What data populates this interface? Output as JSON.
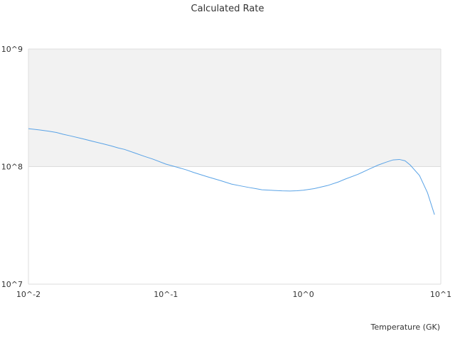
{
  "chart_data": {
    "type": "line",
    "title": "Calculated Rate",
    "xlabel": "Temperature (GK)",
    "ylabel": "",
    "x_scale": "log",
    "y_scale": "log",
    "xlim": [
      0.01,
      10
    ],
    "ylim": [
      10000000,
      1000000000
    ],
    "x_ticks": [
      {
        "value": 0.01,
        "label": "10^-2"
      },
      {
        "value": 0.1,
        "label": "10^-1"
      },
      {
        "value": 1,
        "label": "10^0"
      },
      {
        "value": 10,
        "label": "10^1"
      }
    ],
    "y_ticks": [
      {
        "value": 10000000,
        "label": "10^7"
      },
      {
        "value": 100000000,
        "label": "10^8"
      },
      {
        "value": 1000000000,
        "label": "10^9"
      }
    ],
    "band": {
      "from": 100000000,
      "to": 1000000000,
      "color": "#f2f2f2"
    },
    "gridlines": true,
    "legend": "none",
    "colors": {
      "line": "#5aa3e6",
      "axis": "#dddddd",
      "grid": "#dddddd"
    },
    "series": [
      {
        "x": [
          0.01,
          0.012,
          0.014,
          0.016,
          0.018,
          0.02,
          0.025,
          0.03,
          0.035,
          0.04,
          0.045,
          0.05,
          0.06,
          0.07,
          0.08,
          0.1,
          0.12,
          0.14,
          0.16,
          0.2,
          0.25,
          0.3,
          0.35,
          0.4,
          0.45,
          0.5,
          0.6,
          0.7,
          0.8,
          0.9,
          1.0,
          1.2,
          1.5,
          1.8,
          2.0,
          2.5,
          3.0,
          3.5,
          4.0,
          4.5,
          5.0,
          5.5,
          6.0,
          7.0,
          8.0,
          9.0
        ],
        "y": [
          210000000,
          205000000,
          200000000,
          195000000,
          188000000,
          183000000,
          172000000,
          163000000,
          156000000,
          150000000,
          144000000,
          140000000,
          130000000,
          122000000,
          116000000,
          105000000,
          99000000,
          94000000,
          89000000,
          82000000,
          76000000,
          71000000,
          68500000,
          66500000,
          65000000,
          63500000,
          62800000,
          62200000,
          62000000,
          62300000,
          63000000,
          65000000,
          69000000,
          74000000,
          78000000,
          86000000,
          95000000,
          103000000,
          109000000,
          114000000,
          115000000,
          112000000,
          103000000,
          84000000,
          60000000,
          39000000
        ]
      }
    ]
  }
}
